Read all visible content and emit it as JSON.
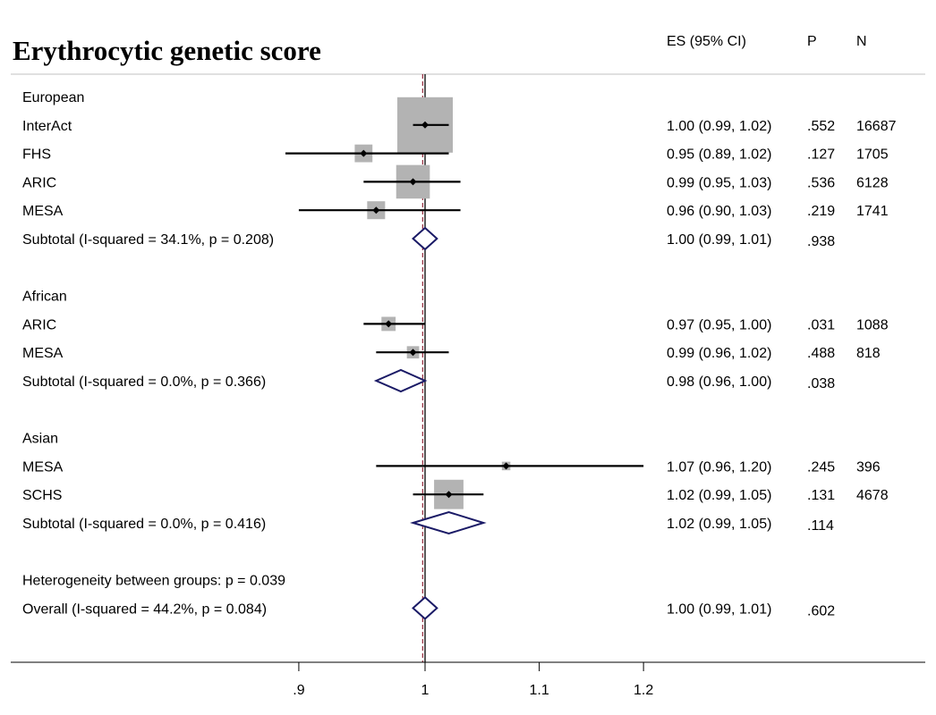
{
  "chart_data": {
    "type": "forest",
    "title": "Erythrocytic genetic score",
    "columns": {
      "es": "ES (95% CI)",
      "p": "P",
      "n": "N"
    },
    "x_ticks": [
      {
        "value": 0.9,
        "label": ".9"
      },
      {
        "value": 1,
        "label": "1"
      },
      {
        "value": 1.1,
        "label": "1.1"
      },
      {
        "value": 1.2,
        "label": "1.2"
      }
    ],
    "scale": "log",
    "null_value": 1,
    "overall_value": 0.998,
    "colors": {
      "box": "#b3b3b3",
      "diamond": "#1a1a66",
      "overall_line": "#8b1a2e"
    },
    "rows": [
      {
        "kind": "header",
        "label": "European"
      },
      {
        "kind": "study",
        "label": "InterAct",
        "est": 1.0,
        "lo": 0.99,
        "hi": 1.02,
        "es_text": "1.00 (0.99, 1.02)",
        "p": ".552",
        "n": "16687",
        "weight": 16687
      },
      {
        "kind": "study",
        "label": "FHS",
        "est": 0.95,
        "lo": 0.89,
        "hi": 1.02,
        "es_text": "0.95 (0.89, 1.02)",
        "p": ".127",
        "n": "1705",
        "weight": 1705
      },
      {
        "kind": "study",
        "label": "ARIC",
        "est": 0.99,
        "lo": 0.95,
        "hi": 1.03,
        "es_text": "0.99 (0.95, 1.03)",
        "p": ".536",
        "n": "6128",
        "weight": 6128
      },
      {
        "kind": "study",
        "label": "MESA",
        "est": 0.96,
        "lo": 0.9,
        "hi": 1.03,
        "es_text": "0.96 (0.90, 1.03)",
        "p": ".219",
        "n": "1741",
        "weight": 1741
      },
      {
        "kind": "subtotal",
        "label": "Subtotal  (I-squared = 34.1%, p = 0.208)",
        "est": 1.0,
        "lo": 0.99,
        "hi": 1.01,
        "es_text": "1.00 (0.99, 1.01)",
        "p": ".938"
      },
      {
        "kind": "blank"
      },
      {
        "kind": "header",
        "label": "African"
      },
      {
        "kind": "study",
        "label": "ARIC",
        "est": 0.97,
        "lo": 0.95,
        "hi": 1.0,
        "es_text": "0.97 (0.95, 1.00)",
        "p": ".031",
        "n": "1088",
        "weight": 1088
      },
      {
        "kind": "study",
        "label": "MESA",
        "est": 0.99,
        "lo": 0.96,
        "hi": 1.02,
        "es_text": "0.99 (0.96, 1.02)",
        "p": ".488",
        "n": "818",
        "weight": 818
      },
      {
        "kind": "subtotal",
        "label": "Subtotal  (I-squared = 0.0%, p = 0.366)",
        "est": 0.98,
        "lo": 0.96,
        "hi": 1.0,
        "es_text": "0.98 (0.96, 1.00)",
        "p": ".038"
      },
      {
        "kind": "blank"
      },
      {
        "kind": "header",
        "label": "Asian"
      },
      {
        "kind": "study",
        "label": "MESA",
        "est": 1.07,
        "lo": 0.96,
        "hi": 1.2,
        "es_text": "1.07 (0.96, 1.20)",
        "p": ".245",
        "n": "396",
        "weight": 396
      },
      {
        "kind": "study",
        "label": "SCHS",
        "est": 1.02,
        "lo": 0.99,
        "hi": 1.05,
        "es_text": "1.02 (0.99, 1.05)",
        "p": ".131",
        "n": "4678",
        "weight": 4678
      },
      {
        "kind": "subtotal",
        "label": "Subtotal  (I-squared = 0.0%, p = 0.416)",
        "est": 1.02,
        "lo": 0.99,
        "hi": 1.05,
        "es_text": "1.02 (0.99, 1.05)",
        "p": ".114"
      },
      {
        "kind": "blank"
      },
      {
        "kind": "note",
        "label": "Heterogeneity between groups: p = 0.039"
      },
      {
        "kind": "overall",
        "label": "Overall  (I-squared = 44.2%, p = 0.084)",
        "est": 1.0,
        "lo": 0.99,
        "hi": 1.01,
        "es_text": "1.00 (0.99, 1.01)",
        "p": ".602"
      }
    ]
  }
}
